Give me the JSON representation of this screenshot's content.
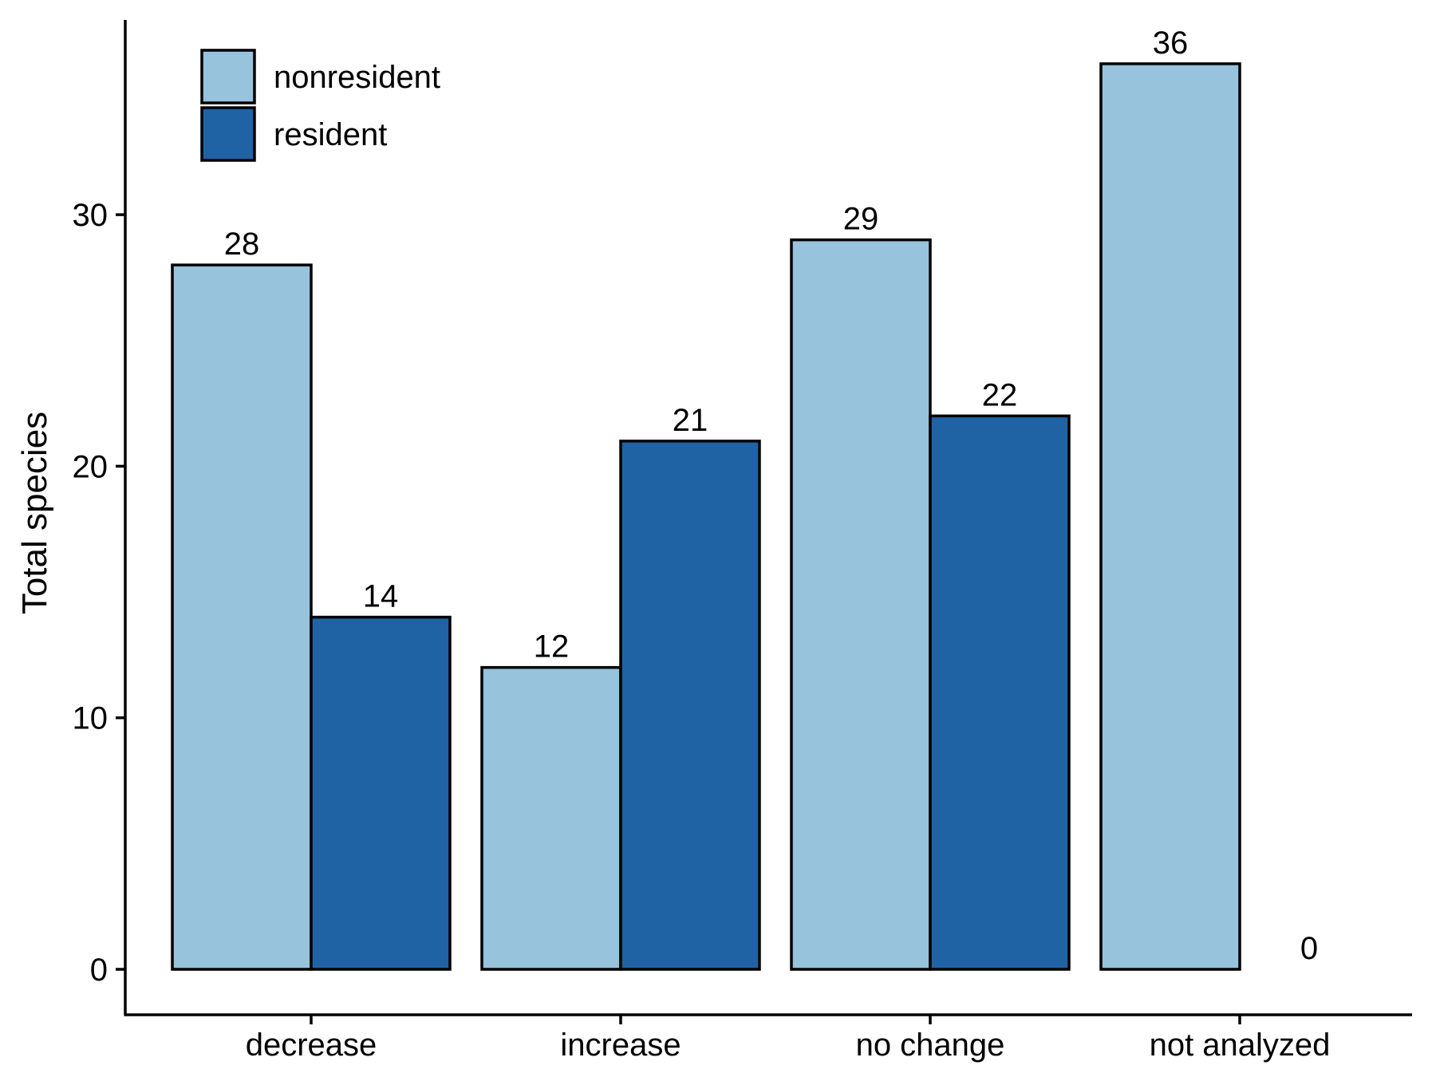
{
  "chart_data": {
    "type": "bar",
    "title": "",
    "xlabel": "",
    "ylabel": "Total species",
    "categories": [
      "decrease",
      "increase",
      "no change",
      "not analyzed"
    ],
    "series": [
      {
        "name": "nonresident",
        "values": [
          28,
          12,
          29,
          36
        ],
        "color": "#97c3dc"
      },
      {
        "name": "resident",
        "values": [
          14,
          21,
          22,
          0
        ],
        "color": "#1f63a5"
      }
    ],
    "ylim": [
      -1.85,
      38.5
    ],
    "yticks": [
      0,
      10,
      20,
      30
    ],
    "grid": false,
    "legend_position": "top-left",
    "data_labels": true,
    "bar_outline_color": "#000000"
  }
}
